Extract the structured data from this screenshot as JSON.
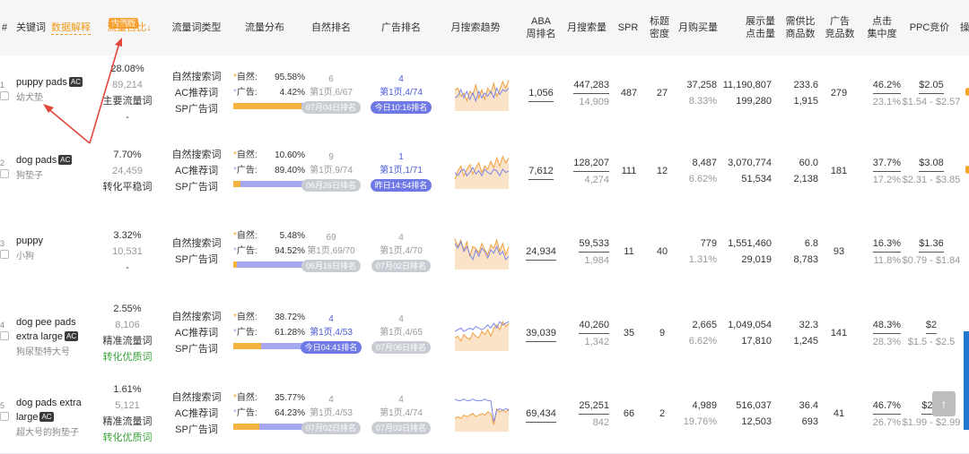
{
  "header": {
    "index_col": "#",
    "keyword": "关键词",
    "data_explain": "数据解释",
    "beta_badge": "内测版",
    "traffic_share": "流量占比↓",
    "traffic_type": "流量词类型",
    "traffic_dist": "流量分布",
    "natural_rank": "自然排名",
    "ad_rank": "广告排名",
    "monthly_trend": "月搜索趋势",
    "aba_rank_1": "ABA",
    "aba_rank_2": "周排名",
    "monthly_search": "月搜索量",
    "spr": "SPR",
    "title_density_1": "标题",
    "title_density_2": "密度",
    "monthly_purchase": "月购买量",
    "impressions_1": "展示量",
    "impressions_2": "点击量",
    "supply_demand_1": "需供比",
    "supply_demand_2": "商品数",
    "ad_products_1": "广告",
    "ad_products_2": "竞品数",
    "click_conc_1": "点击",
    "click_conc_2": "集中度",
    "ppc": "PPC竞价",
    "cut_col": "操"
  },
  "rows": [
    {
      "idx": "1",
      "kw": "puppy pads",
      "ac": "AC",
      "cn": "幼犬垫",
      "share": "28.08%",
      "share_num": "89,214",
      "share_tag": "主要流量词",
      "share_sub": "-",
      "types": [
        "自然搜索词",
        "AC推荐词",
        "SP广告词"
      ],
      "nat_label": "自然:",
      "nat_pct": "95.58%",
      "ad_label": "广告:",
      "ad_pct": "4.42%",
      "nat_frac": 0.9558,
      "nr_num": "6",
      "nr_page": "第1页,6/67",
      "nr_pill": "07月04日排名",
      "nr_pill_style": "g",
      "nr_style": "g",
      "ar_num": "4",
      "ar_page": "第1页,4/74",
      "ar_pill": "今日10:16排名",
      "ar_pill_style": "b",
      "ar_style": "b",
      "aba": "1,056",
      "ms": "447,283",
      "ms_sub": "14,909",
      "spr": "487",
      "td": "27",
      "mp": "37,258",
      "mp_sub": "8.33%",
      "imp": "11,190,807",
      "clk": "199,280",
      "sd": "233.6",
      "sd_sub": "1,915",
      "adp": "279",
      "cc": "46.2%",
      "cc_sub": "23.1%",
      "ppc": "$2.05",
      "ppc_range": "$1.54 - $2.57",
      "spark": [
        0.55,
        0.6,
        0.35,
        0.45,
        0.2,
        0.5,
        0.4,
        0.7,
        0.3,
        0.55,
        0.25,
        0.6,
        0.45,
        0.75,
        0.35,
        0.55,
        0.8,
        0.6,
        0.85
      ],
      "spark2": [
        0.3,
        0.35,
        0.55,
        0.3,
        0.5,
        0.25,
        0.45,
        0.2,
        0.5,
        0.3,
        0.45,
        0.35,
        0.5,
        0.3,
        0.6,
        0.4,
        0.55,
        0.5,
        0.6
      ]
    },
    {
      "idx": "2",
      "kw": "dog pads",
      "ac": "AC",
      "cn": "狗垫子",
      "share": "7.70%",
      "share_num": "24,459",
      "share_tag": "转化平稳词",
      "share_sub": "",
      "types": [
        "自然搜索词",
        "AC推荐词",
        "SP广告词"
      ],
      "nat_label": "自然:",
      "nat_pct": "10.60%",
      "ad_label": "广告:",
      "ad_pct": "89.40%",
      "nat_frac": 0.106,
      "nr_num": "9",
      "nr_page": "第1页,9/74",
      "nr_pill": "06月26日排名",
      "nr_pill_style": "g",
      "nr_style": "g",
      "ar_num": "1",
      "ar_page": "第1页,1/71",
      "ar_pill": "昨日14:54排名",
      "ar_pill_style": "b",
      "ar_style": "b",
      "aba": "7,612",
      "ms": "128,207",
      "ms_sub": "4,274",
      "spr": "111",
      "td": "12",
      "mp": "8,487",
      "mp_sub": "6.62%",
      "imp": "3,070,774",
      "clk": "51,534",
      "sd": "60.0",
      "sd_sub": "2,138",
      "adp": "181",
      "cc": "37.7%",
      "cc_sub": "17.2%",
      "ppc": "$3.08",
      "ppc_range": "$2.31 - $3.85",
      "spark": [
        0.2,
        0.45,
        0.6,
        0.3,
        0.5,
        0.65,
        0.35,
        0.55,
        0.7,
        0.4,
        0.6,
        0.5,
        0.75,
        0.55,
        0.85,
        0.6,
        0.9,
        0.7,
        0.85
      ],
      "spark2": [
        0.4,
        0.3,
        0.45,
        0.5,
        0.3,
        0.4,
        0.55,
        0.35,
        0.45,
        0.3,
        0.5,
        0.4,
        0.35,
        0.5,
        0.45,
        0.3,
        0.5,
        0.4,
        0.45
      ]
    },
    {
      "idx": "3",
      "kw": "puppy",
      "ac": "",
      "cn": "小狗",
      "share": "3.32%",
      "share_num": "10,531",
      "share_tag": "-",
      "share_sub": "",
      "types": [
        "自然搜索词",
        "SP广告词"
      ],
      "nat_label": "自然:",
      "nat_pct": "5.48%",
      "ad_label": "广告:",
      "ad_pct": "94.52%",
      "nat_frac": 0.0548,
      "nr_num": "69",
      "nr_page": "第1页,69/70",
      "nr_pill": "06月16日排名",
      "nr_pill_style": "g",
      "nr_style": "g",
      "ar_num": "4",
      "ar_page": "第1页,4/70",
      "ar_pill": "07月02日排名",
      "ar_pill_style": "g",
      "ar_style": "g",
      "aba": "24,934",
      "ms": "59,533",
      "ms_sub": "1,984",
      "spr": "11",
      "td": "40",
      "mp": "779",
      "mp_sub": "1.31%",
      "imp": "1,551,460",
      "clk": "29,019",
      "sd": "6.8",
      "sd_sub": "8,783",
      "adp": "93",
      "cc": "16.3%",
      "cc_sub": "11.8%",
      "ppc": "$1.36",
      "ppc_range": "$0.79 - $1.84",
      "spark": [
        0.85,
        0.6,
        0.8,
        0.5,
        0.75,
        0.3,
        0.6,
        0.55,
        0.4,
        0.7,
        0.5,
        0.35,
        0.65,
        0.55,
        0.8,
        0.45,
        0.7,
        0.35,
        0.6
      ],
      "spark2": [
        0.7,
        0.55,
        0.75,
        0.45,
        0.6,
        0.35,
        0.2,
        0.5,
        0.3,
        0.55,
        0.45,
        0.25,
        0.5,
        0.4,
        0.6,
        0.35,
        0.45,
        0.2,
        0.3
      ]
    },
    {
      "idx": "4",
      "kw": "dog pee pads extra large",
      "ac": "AC",
      "cn": "狗尿垫特大号",
      "share": "2.55%",
      "share_num": "8,106",
      "share_tag": "精准流量词",
      "share_sub": "转化优质词",
      "types": [
        "自然搜索词",
        "AC推荐词",
        "SP广告词"
      ],
      "nat_label": "自然:",
      "nat_pct": "38.72%",
      "ad_label": "广告:",
      "ad_pct": "61.28%",
      "nat_frac": 0.3872,
      "nr_num": "4",
      "nr_page": "第1页,4/53",
      "nr_pill": "今日04:41排名",
      "nr_pill_style": "b",
      "nr_style": "b",
      "ar_num": "4",
      "ar_page": "第1页,4/65",
      "ar_pill": "07月06日排名",
      "ar_pill_style": "g",
      "ar_style": "g",
      "aba": "39,039",
      "ms": "40,260",
      "ms_sub": "1,342",
      "spr": "35",
      "td": "9",
      "mp": "2,665",
      "mp_sub": "6.62%",
      "imp": "1,049,054",
      "clk": "17,810",
      "sd": "32.3",
      "sd_sub": "1,245",
      "adp": "141",
      "cc": "48.3%",
      "cc_sub": "28.3%",
      "ppc": "$2",
      "ppc_range": "$1.5 - $2.5",
      "spark": [
        0.3,
        0.35,
        0.2,
        0.4,
        0.3,
        0.25,
        0.45,
        0.35,
        0.3,
        0.5,
        0.4,
        0.55,
        0.35,
        0.6,
        0.7,
        0.55,
        0.8,
        0.65,
        0.75
      ],
      "spark2": [
        0.5,
        0.55,
        0.6,
        0.5,
        0.55,
        0.6,
        0.55,
        0.65,
        0.6,
        0.55,
        0.6,
        0.7,
        0.6,
        0.75,
        0.6,
        0.8,
        0.7,
        0.75,
        0.8
      ]
    },
    {
      "idx": "5",
      "kw": "dog pads extra large",
      "ac": "AC",
      "cn": "超大号的狗垫子",
      "share": "1.61%",
      "share_num": "5,121",
      "share_tag": "精准流量词",
      "share_sub": "转化优质词",
      "types": [
        "自然搜索词",
        "AC推荐词",
        "SP广告词"
      ],
      "nat_label": "自然:",
      "nat_pct": "35.77%",
      "ad_label": "广告:",
      "ad_pct": "64.23%",
      "nat_frac": 0.3577,
      "nr_num": "4",
      "nr_page": "第1页,4/53",
      "nr_pill": "07月02日排名",
      "nr_pill_style": "g",
      "nr_style": "g",
      "ar_num": "4",
      "ar_page": "第1页,4/74",
      "ar_pill": "07月03日排名",
      "ar_pill_style": "g",
      "ar_style": "g",
      "aba": "69,434",
      "ms": "25,251",
      "ms_sub": "842",
      "spr": "66",
      "td": "2",
      "mp": "4,989",
      "mp_sub": "19.76%",
      "imp": "516,037",
      "clk": "12,503",
      "sd": "36.4",
      "sd_sub": "693",
      "adp": "41",
      "cc": "46.7%",
      "cc_sub": "26.7%",
      "ppc": "$2.5",
      "ppc_range": "$1.99 - $2.99",
      "spark": [
        0.3,
        0.35,
        0.3,
        0.4,
        0.35,
        0.4,
        0.45,
        0.35,
        0.4,
        0.45,
        0.4,
        0.5,
        0.45,
        0.1,
        0.6,
        0.5,
        0.55,
        0.5,
        0.6
      ],
      "spark2": [
        0.9,
        0.85,
        0.85,
        0.9,
        0.85,
        0.85,
        0.9,
        0.85,
        0.85,
        0.85,
        0.9,
        0.85,
        0.85,
        0.2,
        0.55,
        0.6,
        0.55,
        0.6,
        0.55
      ]
    }
  ],
  "colors": {
    "orange": "#f5b342",
    "purple": "#a6a8ef",
    "blue": "#4a5cd8",
    "accent": "#f7a33a"
  },
  "icons": {
    "scroll_top": "arrow-up-icon"
  },
  "scroll_top_glyph": "↑"
}
